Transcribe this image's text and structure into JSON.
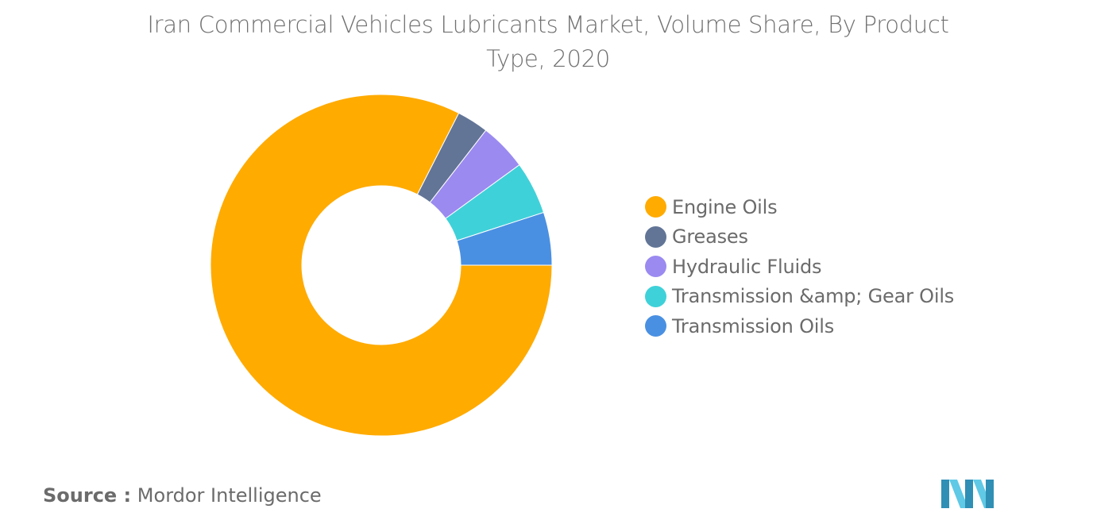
{
  "chart_data": {
    "type": "pie",
    "donut": true,
    "title": "Iran Commercial Vehicles Lubricants Market, Volume Share, By Product Type, 2020",
    "categories": [
      "Engine Oils",
      "Greases",
      "Hydraulic Fluids",
      "Transmission &amp; Gear Oils",
      "Transmission Oils"
    ],
    "values": [
      82.5,
      3.0,
      4.5,
      5.0,
      5.0
    ],
    "colors": [
      "#FFAB00",
      "#627597",
      "#9B8AF0",
      "#3FD1D9",
      "#4A90E2"
    ],
    "legend_position": "right"
  },
  "source": {
    "label": "Source :",
    "value": "Mordor Intelligence"
  },
  "logo": {
    "icon": "mordor-intelligence-logo",
    "colors": [
      "#2F8FB5",
      "#5FC9E6"
    ]
  }
}
